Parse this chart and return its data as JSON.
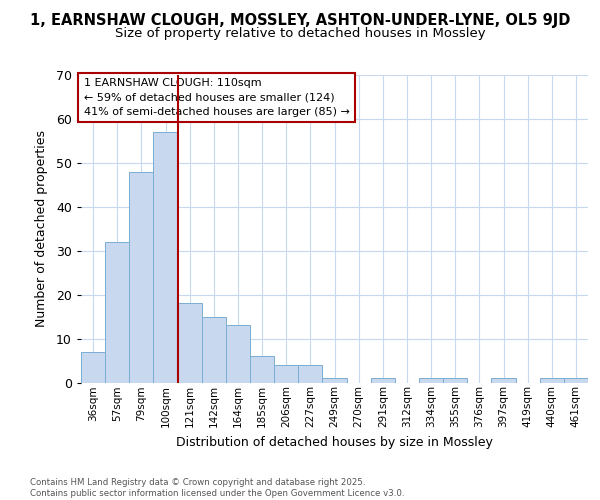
{
  "title_line1": "1, EARNSHAW CLOUGH, MOSSLEY, ASHTON-UNDER-LYNE, OL5 9JD",
  "title_line2": "Size of property relative to detached houses in Mossley",
  "xlabel": "Distribution of detached houses by size in Mossley",
  "ylabel": "Number of detached properties",
  "bin_labels": [
    "36sqm",
    "57sqm",
    "79sqm",
    "100sqm",
    "121sqm",
    "142sqm",
    "164sqm",
    "185sqm",
    "206sqm",
    "227sqm",
    "249sqm",
    "270sqm",
    "291sqm",
    "312sqm",
    "334sqm",
    "355sqm",
    "376sqm",
    "397sqm",
    "419sqm",
    "440sqm",
    "461sqm"
  ],
  "bar_values": [
    7,
    32,
    48,
    57,
    18,
    15,
    13,
    6,
    4,
    4,
    1,
    0,
    1,
    0,
    1,
    1,
    0,
    1,
    0,
    1,
    1
  ],
  "bar_color": "#c8d8ee",
  "bar_edge_color": "#7aaed4",
  "vline_x": 3.5,
  "vline_color": "#aa0000",
  "annotation_text": "1 EARNSHAW CLOUGH: 110sqm\n← 59% of detached houses are smaller (124)\n41% of semi-detached houses are larger (85) →",
  "annotation_box_color": "white",
  "annotation_box_edge": "#aa0000",
  "ylim": [
    0,
    70
  ],
  "yticks": [
    0,
    10,
    20,
    30,
    40,
    50,
    60,
    70
  ],
  "footer_text": "Contains HM Land Registry data © Crown copyright and database right 2025.\nContains public sector information licensed under the Open Government Licence v3.0.",
  "background_color": "#ffffff",
  "grid_color": "#c8d8ee"
}
